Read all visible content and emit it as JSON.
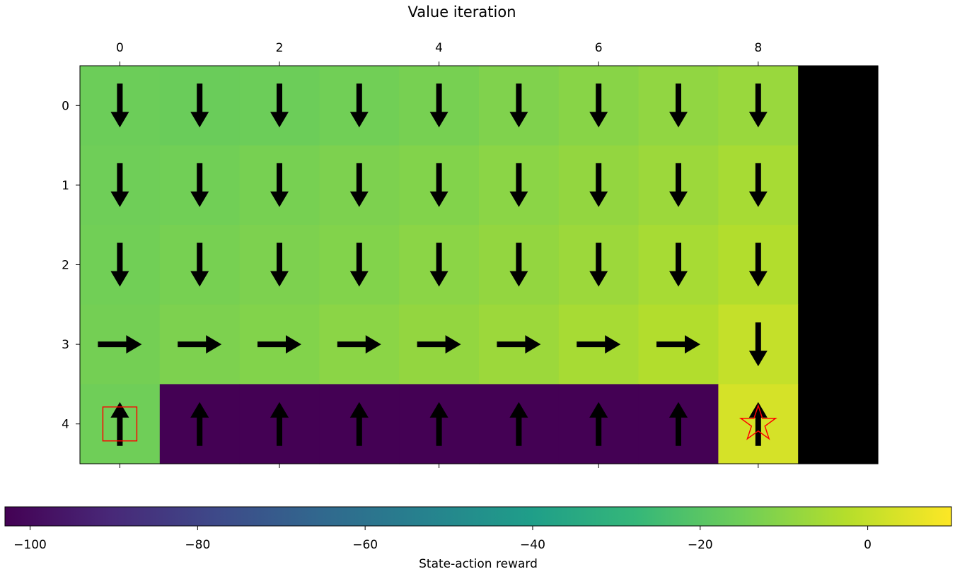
{
  "chart_data": {
    "type": "heatmap",
    "title": "Value iteration",
    "colorbar": {
      "label": "State-action reward",
      "colormap": "viridis",
      "range": [
        -103,
        10
      ],
      "ticks": [
        {
          "value": -100,
          "label": "−100"
        },
        {
          "value": -80,
          "label": "−80"
        },
        {
          "value": -60,
          "label": "−60"
        },
        {
          "value": -40,
          "label": "−40"
        },
        {
          "value": -20,
          "label": "−20"
        },
        {
          "value": 0,
          "label": "0"
        }
      ]
    },
    "x_ticks": [
      {
        "value": 0,
        "label": "0"
      },
      {
        "value": 2,
        "label": "2"
      },
      {
        "value": 4,
        "label": "4"
      },
      {
        "value": 6,
        "label": "6"
      },
      {
        "value": 8,
        "label": "8"
      }
    ],
    "y_ticks": [
      {
        "value": 0,
        "label": "0"
      },
      {
        "value": 1,
        "label": "1"
      },
      {
        "value": 2,
        "label": "2"
      },
      {
        "value": 3,
        "label": "3"
      },
      {
        "value": 4,
        "label": "4"
      }
    ],
    "x_range": [
      -0.5,
      9.5
    ],
    "y_range": [
      -0.5,
      4.5
    ],
    "values": [
      [
        -15.5,
        -16.0,
        -15.5,
        -14.5,
        -13.5,
        -12.0,
        -10.5,
        -9.0,
        -7.5,
        null
      ],
      [
        -15.0,
        -14.5,
        -13.5,
        -12.5,
        -11.5,
        -10.0,
        -8.5,
        -7.0,
        -5.0,
        null
      ],
      [
        -14.5,
        -13.5,
        -12.5,
        -11.5,
        -10.0,
        -8.5,
        -7.0,
        -5.0,
        -3.0,
        null
      ],
      [
        -14.0,
        -12.5,
        -11.5,
        -10.0,
        -8.5,
        -7.0,
        -5.0,
        -3.0,
        0.0,
        null
      ],
      [
        -15.0,
        -103,
        -103,
        -103,
        -103,
        -103,
        -103,
        -103,
        3.0,
        null
      ]
    ],
    "blocked_color": "#000000",
    "policy": [
      [
        "down",
        "down",
        "down",
        "down",
        "down",
        "down",
        "down",
        "down",
        "down",
        ""
      ],
      [
        "down",
        "down",
        "down",
        "down",
        "down",
        "down",
        "down",
        "down",
        "down",
        ""
      ],
      [
        "down",
        "down",
        "down",
        "down",
        "down",
        "down",
        "down",
        "down",
        "down",
        ""
      ],
      [
        "right",
        "right",
        "right",
        "right",
        "right",
        "right",
        "right",
        "right",
        "down",
        ""
      ],
      [
        "up",
        "up",
        "up",
        "up",
        "up",
        "up",
        "up",
        "up",
        "up",
        ""
      ]
    ],
    "start": {
      "row": 4,
      "col": 0,
      "marker": "square",
      "color": "#ff0000"
    },
    "goal": {
      "row": 4,
      "col": 8,
      "marker": "star",
      "color": "#ff0000"
    }
  }
}
